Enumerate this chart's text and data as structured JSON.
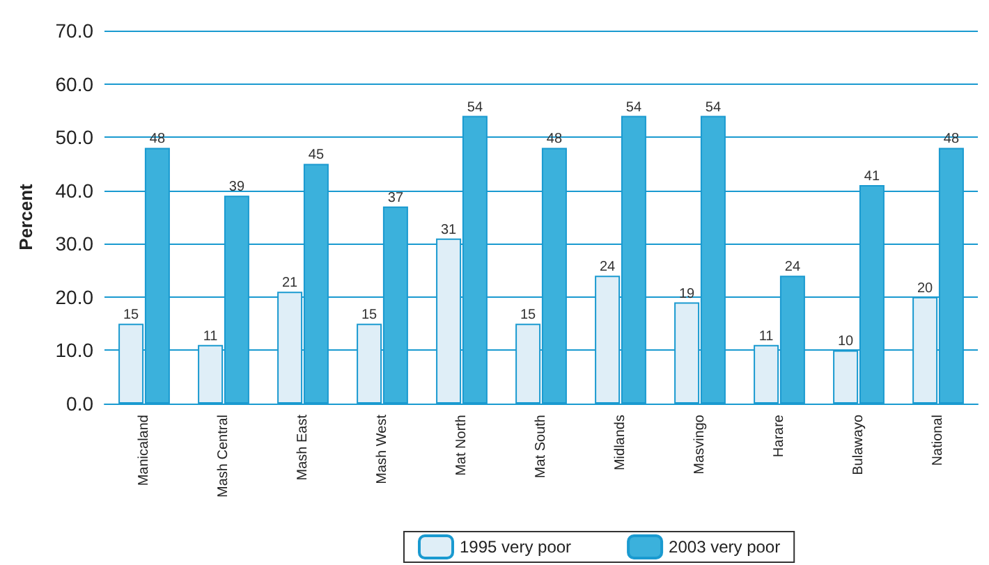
{
  "chart_data": {
    "type": "bar",
    "ylabel": "Percent",
    "categories": [
      "Manicaland",
      "Mash Central",
      "Mash East",
      "Mash West",
      "Mat North",
      "Mat South",
      "Midlands",
      "Masvingo",
      "Harare",
      "Bulawayo",
      "National"
    ],
    "series": [
      {
        "name": "1995 very poor",
        "color": "#dfeef7",
        "values": [
          15,
          11,
          21,
          15,
          31,
          15,
          24,
          19,
          11,
          10,
          20
        ]
      },
      {
        "name": "2003 very poor",
        "color": "#3bb1dc",
        "values": [
          48,
          39,
          45,
          37,
          54,
          48,
          54,
          54,
          24,
          41,
          48
        ]
      }
    ],
    "ylim": [
      0,
      70
    ],
    "yticks": [
      {
        "value": 0,
        "label": "0.0"
      },
      {
        "value": 10,
        "label": "10.0"
      },
      {
        "value": 20,
        "label": "20.0"
      },
      {
        "value": 30,
        "label": "30.0"
      },
      {
        "value": 40,
        "label": "40.0"
      },
      {
        "value": 50,
        "label": "50.0"
      },
      {
        "value": 60,
        "label": "60.0"
      },
      {
        "value": 70,
        "label": "70.0"
      }
    ],
    "grid": "y",
    "legend": "bottom",
    "data_labels": true
  }
}
